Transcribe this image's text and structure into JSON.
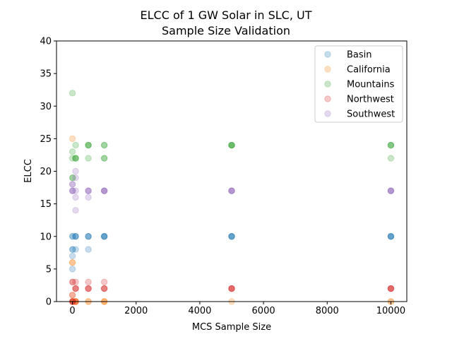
{
  "chart_data": {
    "type": "scatter",
    "title": "ELCC of 1 GW Solar in SLC, UT",
    "subtitle": "Sample Size Validation",
    "xlabel": "MCS Sample Size",
    "ylabel": "ELCC",
    "xlim": [
      -500,
      10500
    ],
    "ylim": [
      0,
      40
    ],
    "xticks": [
      0,
      2000,
      4000,
      6000,
      8000,
      10000
    ],
    "yticks": [
      0,
      5,
      10,
      15,
      20,
      25,
      30,
      35,
      40
    ],
    "legend_position": "top-right",
    "grid": false,
    "marker_alpha": 0.25,
    "series": [
      {
        "name": "Basin",
        "color": "#1f77b4",
        "points": [
          [
            1,
            5
          ],
          [
            1,
            7
          ],
          [
            1,
            8
          ],
          [
            1,
            10
          ],
          [
            10,
            8
          ],
          [
            10,
            10
          ],
          [
            100,
            8
          ],
          [
            100,
            10
          ],
          [
            100,
            10
          ],
          [
            100,
            10
          ],
          [
            500,
            8
          ],
          [
            500,
            10
          ],
          [
            500,
            10
          ],
          [
            500,
            10
          ],
          [
            1000,
            10
          ],
          [
            1000,
            10
          ],
          [
            1000,
            10
          ],
          [
            1000,
            10
          ],
          [
            5000,
            10
          ],
          [
            5000,
            10
          ],
          [
            5000,
            10
          ],
          [
            5000,
            10
          ],
          [
            10000,
            10
          ],
          [
            10000,
            10
          ],
          [
            10000,
            10
          ],
          [
            10000,
            10
          ]
        ]
      },
      {
        "name": "California",
        "color": "#ff7f0e",
        "points": [
          [
            1,
            25
          ],
          [
            1,
            6
          ],
          [
            1,
            6
          ],
          [
            1,
            1
          ],
          [
            1,
            0
          ],
          [
            10,
            0
          ],
          [
            10,
            0
          ],
          [
            100,
            0
          ],
          [
            100,
            0
          ],
          [
            100,
            0
          ],
          [
            100,
            0
          ],
          [
            500,
            0
          ],
          [
            500,
            0
          ],
          [
            1000,
            0
          ],
          [
            1000,
            0
          ],
          [
            1000,
            0
          ],
          [
            5000,
            0
          ],
          [
            10000,
            0
          ],
          [
            10000,
            0
          ]
        ]
      },
      {
        "name": "Mountains",
        "color": "#2ca02c",
        "points": [
          [
            1,
            32
          ],
          [
            1,
            23
          ],
          [
            1,
            22
          ],
          [
            1,
            19
          ],
          [
            10,
            19
          ],
          [
            100,
            24
          ],
          [
            100,
            22
          ],
          [
            100,
            22
          ],
          [
            100,
            22
          ],
          [
            500,
            24
          ],
          [
            500,
            24
          ],
          [
            500,
            24
          ],
          [
            500,
            22
          ],
          [
            1000,
            24
          ],
          [
            1000,
            24
          ],
          [
            1000,
            22
          ],
          [
            1000,
            22
          ],
          [
            5000,
            24
          ],
          [
            5000,
            24
          ],
          [
            5000,
            24
          ],
          [
            5000,
            24
          ],
          [
            10000,
            24
          ],
          [
            10000,
            24
          ],
          [
            10000,
            24
          ],
          [
            10000,
            22
          ]
        ]
      },
      {
        "name": "Northwest",
        "color": "#d62728",
        "points": [
          [
            1,
            3
          ],
          [
            1,
            1
          ],
          [
            1,
            0
          ],
          [
            1,
            0
          ],
          [
            10,
            3
          ],
          [
            10,
            0
          ],
          [
            100,
            3
          ],
          [
            100,
            2
          ],
          [
            100,
            2
          ],
          [
            100,
            2
          ],
          [
            100,
            0
          ],
          [
            500,
            3
          ],
          [
            500,
            2
          ],
          [
            500,
            2
          ],
          [
            500,
            2
          ],
          [
            1000,
            3
          ],
          [
            1000,
            2
          ],
          [
            1000,
            2
          ],
          [
            1000,
            2
          ],
          [
            5000,
            2
          ],
          [
            5000,
            2
          ],
          [
            5000,
            2
          ],
          [
            5000,
            2
          ],
          [
            10000,
            2
          ],
          [
            10000,
            2
          ],
          [
            10000,
            2
          ],
          [
            10000,
            2
          ]
        ]
      },
      {
        "name": "Southwest",
        "color": "#9467bd",
        "points": [
          [
            1,
            18
          ],
          [
            1,
            18
          ],
          [
            1,
            17
          ],
          [
            1,
            17
          ],
          [
            10,
            17
          ],
          [
            100,
            20
          ],
          [
            100,
            19
          ],
          [
            100,
            16
          ],
          [
            100,
            14
          ],
          [
            100,
            17
          ],
          [
            500,
            17
          ],
          [
            500,
            17
          ],
          [
            500,
            17
          ],
          [
            500,
            16
          ],
          [
            1000,
            17
          ],
          [
            1000,
            17
          ],
          [
            1000,
            17
          ],
          [
            1000,
            17
          ],
          [
            5000,
            17
          ],
          [
            5000,
            17
          ],
          [
            5000,
            17
          ],
          [
            5000,
            17
          ],
          [
            10000,
            17
          ],
          [
            10000,
            17
          ],
          [
            10000,
            17
          ],
          [
            10000,
            17
          ]
        ]
      }
    ]
  }
}
